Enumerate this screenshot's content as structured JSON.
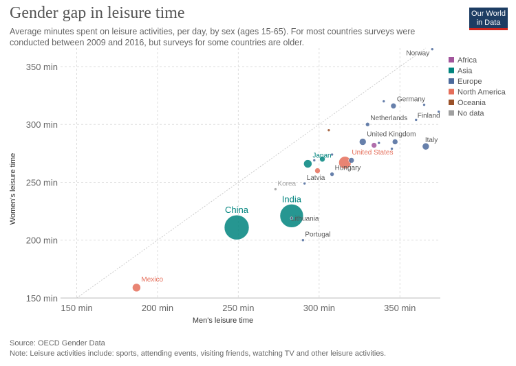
{
  "header": {
    "title": "Gender gap in leisure time",
    "subtitle": "Average minutes spent on leisure activities, per day, by sex (ages 15-65). For most countries surveys were conducted between 2009 and 2016, but surveys for some countries are older.",
    "logo_line1": "Our World",
    "logo_line2": "in Data"
  },
  "footer": {
    "source": "Source: OECD Gender Data",
    "note": "Note: Leisure activities include: sports, attending events, visiting friends, watching TV and other leisure activities."
  },
  "colors": {
    "Africa": "#a2559c",
    "Asia": "#00847e",
    "Europe": "#4c6a9c",
    "North America": "#e56e5a",
    "Oceania": "#9a5129",
    "No data": "#a0a0a0"
  },
  "chart_data": {
    "type": "scatter",
    "xlabel": "Men's leisure time",
    "ylabel": "Women's leisure time",
    "xlim": [
      140,
      375
    ],
    "ylim": [
      150,
      366
    ],
    "x_ticks": [
      150,
      200,
      250,
      300,
      350
    ],
    "y_ticks": [
      150,
      200,
      250,
      300,
      350
    ],
    "x_tick_labels": [
      "150 min",
      "200 min",
      "250 min",
      "300 min",
      "350 min"
    ],
    "y_tick_labels": [
      "150 min",
      "200 min",
      "250 min",
      "300 min",
      "350 min"
    ],
    "grid": true,
    "diagonal_reference": true,
    "legend_position": "top-right",
    "legend": [
      "Africa",
      "Asia",
      "Europe",
      "North America",
      "Oceania",
      "No data"
    ],
    "points": [
      {
        "x": 370,
        "y": 365,
        "label": "Norway",
        "region": "Europe",
        "size": 2
      },
      {
        "x": 346,
        "y": 316,
        "label": "Germany",
        "region": "Europe",
        "size": 4
      },
      {
        "x": 340,
        "y": 320,
        "label": "",
        "region": "Europe",
        "size": 2
      },
      {
        "x": 365,
        "y": 317,
        "label": "",
        "region": "Europe",
        "size": 2
      },
      {
        "x": 374,
        "y": 311,
        "label": "",
        "region": "Europe",
        "size": 2
      },
      {
        "x": 360,
        "y": 304,
        "label": "Finland",
        "region": "Europe",
        "size": 2
      },
      {
        "x": 330,
        "y": 300,
        "label": "Netherlands",
        "region": "Europe",
        "size": 3
      },
      {
        "x": 306,
        "y": 295,
        "label": "",
        "region": "Oceania",
        "size": 2
      },
      {
        "x": 327,
        "y": 285,
        "label": "United Kingdom",
        "region": "Europe",
        "size": 5
      },
      {
        "x": 334,
        "y": 282,
        "label": "",
        "region": "Africa",
        "size": 4
      },
      {
        "x": 337,
        "y": 284,
        "label": "",
        "region": "Europe",
        "size": 2
      },
      {
        "x": 347,
        "y": 285,
        "label": "",
        "region": "Europe",
        "size": 4
      },
      {
        "x": 366,
        "y": 281,
        "label": "Italy",
        "region": "Europe",
        "size": 5
      },
      {
        "x": 345,
        "y": 279,
        "label": "",
        "region": "Europe",
        "size": 2
      },
      {
        "x": 308,
        "y": 274,
        "label": "",
        "region": "Europe",
        "size": 2
      },
      {
        "x": 293,
        "y": 266,
        "label": "Japan",
        "region": "Asia",
        "size": 6
      },
      {
        "x": 297,
        "y": 269,
        "label": "",
        "region": "Europe",
        "size": 2
      },
      {
        "x": 302,
        "y": 270,
        "label": "",
        "region": "Asia",
        "size": 4
      },
      {
        "x": 316,
        "y": 267,
        "label": "United States",
        "region": "North America",
        "size": 9
      },
      {
        "x": 320,
        "y": 269,
        "label": "",
        "region": "Europe",
        "size": 4
      },
      {
        "x": 299,
        "y": 260,
        "label": "",
        "region": "North America",
        "size": 4
      },
      {
        "x": 308,
        "y": 257,
        "label": "Hungary",
        "region": "Europe",
        "size": 3
      },
      {
        "x": 291,
        "y": 249,
        "label": "Latvia",
        "region": "Europe",
        "size": 2
      },
      {
        "x": 273,
        "y": 244,
        "label": "Korea",
        "region": "No data",
        "size": 2
      },
      {
        "x": 249,
        "y": 211,
        "label": "China",
        "region": "Asia",
        "size": 18
      },
      {
        "x": 283,
        "y": 221,
        "label": "India",
        "region": "Asia",
        "size": 17
      },
      {
        "x": 283,
        "y": 219,
        "label": "Lithuania",
        "region": "Europe",
        "size": 2
      },
      {
        "x": 290,
        "y": 200,
        "label": "Portugal",
        "region": "Europe",
        "size": 2
      },
      {
        "x": 187,
        "y": 159,
        "label": "Mexico",
        "region": "North America",
        "size": 6
      }
    ]
  }
}
